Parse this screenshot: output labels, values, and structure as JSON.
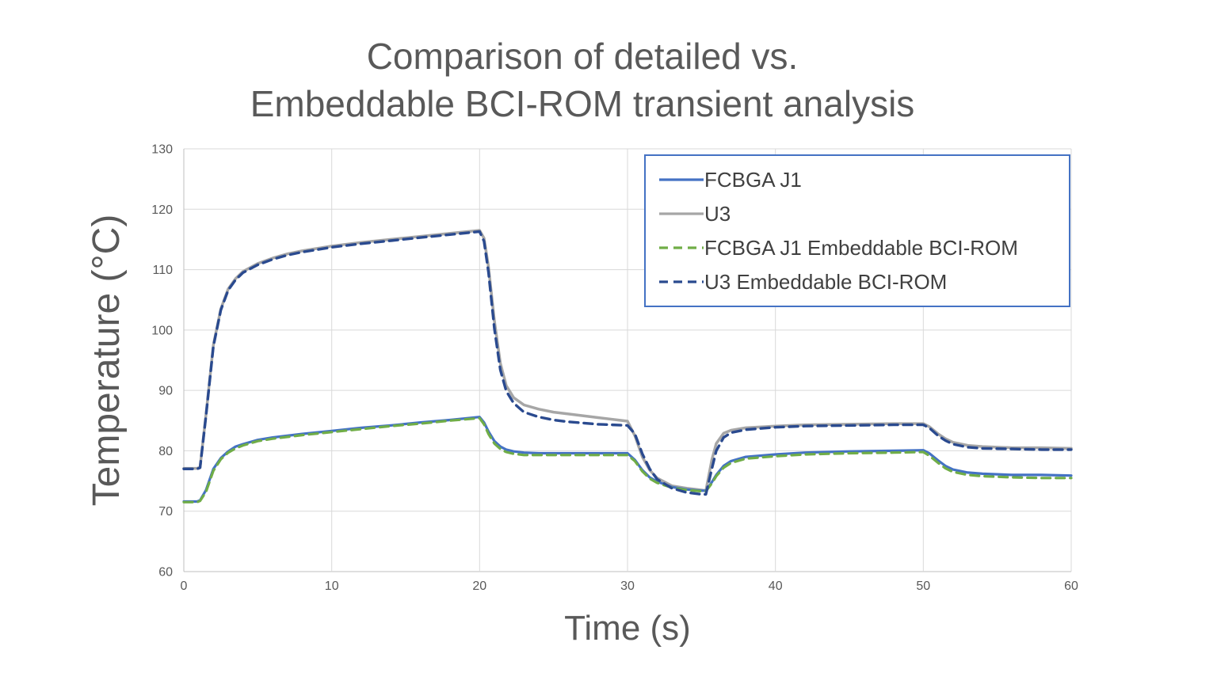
{
  "title": {
    "line1": "Comparison of detailed vs.",
    "line2": "Embeddable BCI-ROM transient analysis"
  },
  "colors": {
    "title_text": "#595959",
    "tick_text": "#595959",
    "legend_text": "#404040",
    "legend_border": "#4472C4",
    "gridline": "#D9D9D9",
    "axis_line": "#BFBFBF",
    "series_blue": "#4472C4",
    "series_gray": "#A6A6A6",
    "series_green": "#70AD47",
    "series_navy": "#2A4A8F"
  },
  "chart_data": {
    "type": "line",
    "title": "Comparison of detailed vs. Embeddable BCI-ROM transient analysis",
    "xlabel": "Time (s)",
    "ylabel": "Temperature (°C)",
    "xlim": [
      0,
      60
    ],
    "ylim": [
      60,
      130
    ],
    "xticks": [
      0,
      10,
      20,
      30,
      40,
      50,
      60
    ],
    "yticks": [
      60,
      70,
      80,
      90,
      100,
      110,
      120,
      130
    ],
    "grid": true,
    "legend_position": "top-right",
    "x": [
      0,
      0.9,
      1.1,
      1.5,
      2,
      2.5,
      3,
      3.5,
      4,
      5,
      6,
      7,
      8,
      10,
      12,
      14,
      16,
      18,
      20,
      20.3,
      20.6,
      21,
      21.4,
      21.8,
      22.3,
      23,
      24,
      25,
      26,
      28,
      30,
      30.5,
      31,
      31.5,
      32,
      33,
      34,
      35,
      35.3,
      35.7,
      36,
      36.5,
      37,
      38,
      40,
      42,
      45,
      48,
      50,
      50.4,
      51,
      51.5,
      52,
      53,
      54,
      56,
      58,
      60
    ],
    "series": [
      {
        "name": "FCBGA J1",
        "color": "#4472C4",
        "dash": "solid",
        "width": 3.2,
        "values": [
          71.6,
          71.6,
          71.8,
          73.5,
          77.0,
          78.8,
          79.9,
          80.7,
          81.1,
          81.8,
          82.2,
          82.5,
          82.8,
          83.3,
          83.8,
          84.2,
          84.7,
          85.1,
          85.6,
          84.7,
          83.2,
          81.6,
          80.7,
          80.2,
          79.9,
          79.7,
          79.6,
          79.6,
          79.6,
          79.6,
          79.6,
          78.5,
          76.8,
          75.6,
          74.9,
          74.0,
          73.6,
          73.4,
          73.4,
          74.8,
          76.0,
          77.5,
          78.3,
          79.0,
          79.4,
          79.7,
          79.9,
          80.0,
          80.1,
          79.6,
          78.4,
          77.5,
          76.9,
          76.4,
          76.2,
          76.0,
          76.0,
          75.9
        ]
      },
      {
        "name": "U3",
        "color": "#A6A6A6",
        "dash": "solid",
        "width": 3.5,
        "values": [
          77.1,
          77.1,
          77.3,
          86.0,
          97.5,
          103.5,
          106.8,
          108.5,
          109.7,
          111.0,
          111.9,
          112.6,
          113.1,
          113.9,
          114.5,
          115.0,
          115.5,
          116.0,
          116.5,
          115.2,
          110.5,
          101.5,
          94.5,
          90.8,
          88.8,
          87.6,
          86.9,
          86.4,
          86.1,
          85.5,
          84.9,
          82.5,
          79.0,
          76.8,
          75.5,
          74.2,
          73.8,
          73.5,
          73.4,
          78.5,
          81.2,
          82.9,
          83.4,
          83.8,
          84.1,
          84.3,
          84.4,
          84.5,
          84.5,
          84.0,
          82.8,
          82.0,
          81.4,
          80.9,
          80.7,
          80.5,
          80.5,
          80.4
        ]
      },
      {
        "name": "FCBGA J1 Embeddable BCI-ROM",
        "color": "#70AD47",
        "dash": "dashed",
        "width": 3.2,
        "values": [
          71.5,
          71.5,
          71.7,
          73.2,
          76.7,
          78.6,
          79.7,
          80.4,
          80.9,
          81.6,
          82.0,
          82.3,
          82.6,
          83.1,
          83.6,
          84.1,
          84.5,
          85.0,
          85.4,
          84.4,
          82.8,
          81.2,
          80.3,
          79.8,
          79.5,
          79.3,
          79.3,
          79.3,
          79.3,
          79.3,
          79.3,
          78.3,
          76.6,
          75.4,
          74.7,
          73.9,
          73.5,
          73.3,
          73.3,
          74.6,
          75.8,
          77.2,
          78.0,
          78.7,
          79.1,
          79.4,
          79.6,
          79.7,
          79.8,
          79.2,
          78.0,
          77.1,
          76.5,
          76.0,
          75.8,
          75.6,
          75.5,
          75.5
        ]
      },
      {
        "name": "U3 Embeddable BCI-ROM",
        "color": "#2A4A8F",
        "dash": "dashed",
        "width": 3.4,
        "values": [
          77.0,
          77.0,
          77.2,
          85.8,
          97.3,
          103.3,
          106.6,
          108.3,
          109.5,
          110.8,
          111.7,
          112.4,
          112.9,
          113.7,
          114.3,
          114.8,
          115.3,
          115.8,
          116.3,
          114.7,
          109.6,
          100.2,
          93.4,
          89.9,
          87.9,
          86.4,
          85.6,
          85.1,
          84.8,
          84.4,
          84.2,
          82.8,
          79.5,
          77.0,
          75.3,
          73.8,
          73.1,
          72.8,
          72.8,
          77.0,
          80.0,
          82.2,
          83.0,
          83.5,
          83.9,
          84.1,
          84.2,
          84.3,
          84.3,
          83.8,
          82.5,
          81.7,
          81.1,
          80.6,
          80.4,
          80.3,
          80.2,
          80.2
        ]
      }
    ]
  }
}
